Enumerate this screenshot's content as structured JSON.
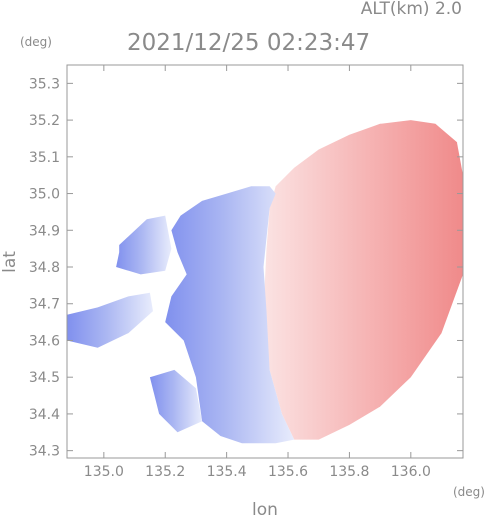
{
  "header": {
    "alt_label": "ALT(km) 2.0",
    "timestamp": "2021/12/25 02:23:47"
  },
  "chart_data": {
    "type": "heatmap",
    "title": "2021/12/25 02:23:47",
    "subtitle": "ALT(km) 2.0",
    "xlabel": "lon",
    "ylabel": "lat",
    "x_unit": "(deg)",
    "y_unit": "(deg)",
    "xlim": [
      134.88,
      136.17
    ],
    "ylim": [
      34.28,
      35.35
    ],
    "x_ticks": [
      135.0,
      135.2,
      135.4,
      135.6,
      135.8,
      136.0
    ],
    "x_tick_labels": [
      "135.0",
      "135.2",
      "135.4",
      "135.6",
      "135.8",
      "136.0"
    ],
    "y_ticks": [
      34.3,
      34.4,
      34.5,
      34.6,
      34.7,
      34.8,
      34.9,
      35.0,
      35.1,
      35.2,
      35.3
    ],
    "y_tick_labels": [
      "34.3",
      "34.4",
      "34.5",
      "34.6",
      "34.7",
      "34.8",
      "34.9",
      "35.0",
      "35.1",
      "35.2",
      "35.3"
    ],
    "grid": false,
    "colors": {
      "approaching": "#8090ee",
      "receding": "#f08a8a",
      "neutral": "#ffffff",
      "axis": "#999999",
      "text": "#8a8a8a"
    },
    "regions": [
      {
        "name": "receding-area",
        "polarity": "positive",
        "lon": [
          135.56,
          135.62,
          135.7,
          135.8,
          135.9,
          136.0,
          136.08,
          136.15,
          136.17,
          136.17,
          136.1,
          136.0,
          135.9,
          135.8,
          135.7,
          135.62,
          135.58,
          135.54,
          135.52,
          135.53,
          135.54
        ],
        "lat": [
          35.02,
          35.07,
          35.12,
          35.16,
          35.19,
          35.2,
          35.19,
          35.14,
          35.05,
          34.78,
          34.62,
          34.5,
          34.42,
          34.37,
          34.33,
          34.33,
          34.4,
          34.52,
          34.68,
          34.85,
          34.96
        ]
      },
      {
        "name": "approaching-main",
        "polarity": "negative",
        "lon": [
          135.25,
          135.32,
          135.4,
          135.48,
          135.54,
          135.56,
          135.54,
          135.52,
          135.53,
          135.54,
          135.58,
          135.62,
          135.56,
          135.45,
          135.38,
          135.32,
          135.3,
          135.26,
          135.2,
          135.22,
          135.27,
          135.24,
          135.22
        ],
        "lat": [
          34.94,
          34.98,
          35.0,
          35.02,
          35.02,
          35.0,
          34.96,
          34.8,
          34.68,
          34.52,
          34.4,
          34.33,
          34.32,
          34.32,
          34.34,
          34.38,
          34.5,
          34.6,
          34.65,
          34.72,
          34.78,
          34.84,
          34.9
        ]
      },
      {
        "name": "approaching-west-band",
        "polarity": "negative",
        "lon": [
          135.05,
          135.14,
          135.2,
          135.22,
          135.2,
          135.12,
          135.04,
          135.05
        ],
        "lat": [
          34.86,
          34.93,
          34.94,
          34.85,
          34.79,
          34.78,
          34.8,
          34.84
        ]
      },
      {
        "name": "approaching-southwest-arm",
        "polarity": "negative",
        "lon": [
          134.88,
          134.98,
          135.08,
          135.15,
          135.16,
          135.08,
          134.98,
          134.88
        ],
        "lat": [
          34.67,
          34.69,
          34.72,
          34.73,
          34.68,
          34.62,
          34.58,
          34.6
        ]
      },
      {
        "name": "approaching-south-spur",
        "polarity": "negative",
        "lon": [
          135.15,
          135.23,
          135.3,
          135.32,
          135.24,
          135.18
        ],
        "lat": [
          34.5,
          34.52,
          34.47,
          34.38,
          34.35,
          34.4
        ]
      }
    ]
  }
}
